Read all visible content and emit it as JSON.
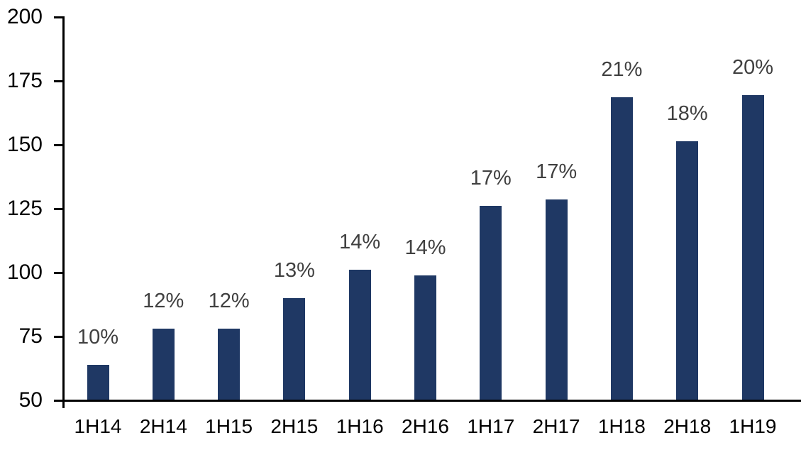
{
  "chart_data": {
    "type": "bar",
    "title": "",
    "xlabel": "",
    "ylabel": "",
    "categories": [
      "1H14",
      "2H14",
      "1H15",
      "2H15",
      "1H16",
      "2H16",
      "1H17",
      "2H17",
      "1H18",
      "2H18",
      "1H19"
    ],
    "values": [
      64,
      78,
      78,
      90,
      101,
      99,
      126,
      128.5,
      168.5,
      151.5,
      169.5
    ],
    "data_labels": [
      "10%",
      "12%",
      "12%",
      "13%",
      "14%",
      "14%",
      "17%",
      "17%",
      "21%",
      "18%",
      "20%"
    ],
    "yticks": [
      50,
      75,
      100,
      125,
      150,
      175,
      200
    ],
    "ytick_labels": [
      "50",
      "75",
      "100",
      "125",
      "150",
      "175",
      "200"
    ],
    "ylim": [
      50,
      200
    ],
    "grid": "off",
    "legend": "none",
    "colors": {
      "bar": "#1F3864",
      "data_label": "#404040",
      "axis": "#000000",
      "background": "#ffffff"
    }
  }
}
